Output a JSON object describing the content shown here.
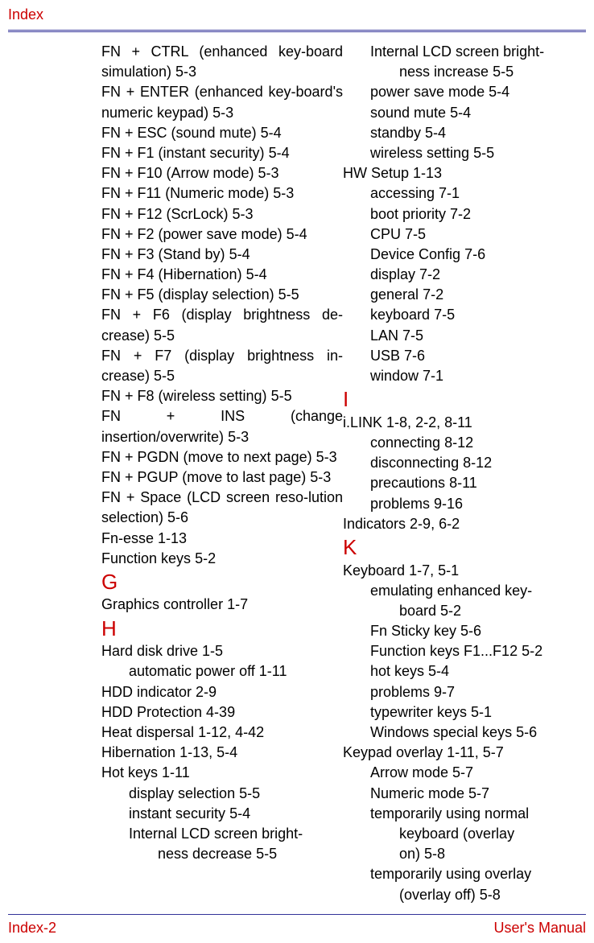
{
  "header": {
    "running_head": "Index"
  },
  "footer": {
    "page_number": "Index-2",
    "doc_title": "User's Manual"
  },
  "letters": {
    "G": "G",
    "H": "H",
    "I": "I",
    "K": "K"
  },
  "col1": {
    "e1": {
      "t": "FN + CTRL (enhanced key-board simulation) ",
      "p": "5-3"
    },
    "e2": {
      "t": "FN + ENTER (enhanced key-board's numeric keypad) ",
      "p": "5-3"
    },
    "e3": {
      "t": "FN + ESC (sound mute) ",
      "p": "5-4"
    },
    "e4": {
      "t": "FN + F1 (instant security) ",
      "p": "5-4"
    },
    "e5": {
      "t": "FN + F10 (Arrow mode) ",
      "p": "5-3"
    },
    "e6": {
      "t": "FN + F11 (Numeric mode) ",
      "p": "5-3"
    },
    "e7": {
      "t": "FN + F12 (ScrLock) ",
      "p": "5-3"
    },
    "e8": {
      "t": "FN + F2 (power save mode) ",
      "p": "5-4"
    },
    "e9": {
      "t": "FN + F3 (Stand by) ",
      "p": "5-4"
    },
    "e10": {
      "t": "FN + F4 (Hibernation) ",
      "p": "5-4"
    },
    "e11": {
      "t": "FN + F5 (display selection) ",
      "p": "5-5"
    },
    "e12": {
      "t": "FN + F6 (display brightness de-crease) ",
      "p": "5-5"
    },
    "e13": {
      "t": "FN + F7 (display brightness in-crease) ",
      "p": "5-5"
    },
    "e14": {
      "t": "FN + F8 (wireless setting) ",
      "p": "5-5"
    },
    "e15": {
      "t": "FN + INS (change insertion/overwrite) ",
      "p": "5-3"
    },
    "e16": {
      "t": "FN + PGDN (move to next page) ",
      "p": "5-3"
    },
    "e17": {
      "t": "FN + PGUP (move to last page) ",
      "p": "5-3"
    },
    "e18": {
      "t": "FN + Space (LCD screen reso-lution selection) ",
      "p": "5-6"
    },
    "e19": {
      "t": "Fn-esse ",
      "p": "1-13"
    },
    "e20": {
      "t": "Function keys ",
      "p": "5-2"
    },
    "g1": {
      "t": "Graphics controller ",
      "p": "1-7"
    },
    "h1": {
      "t": "Hard disk drive ",
      "p": "1-5"
    },
    "h1a": {
      "t": "automatic power off ",
      "p": "1-11"
    },
    "h2": {
      "t": "HDD indicator ",
      "p": "2-9"
    },
    "h3": {
      "t": "HDD Protection ",
      "p": "4-39"
    },
    "h4": {
      "t": "Heat dispersal ",
      "p1": "1-12",
      "sep": ", ",
      "p2": "4-42"
    },
    "h5": {
      "t": "Hibernation ",
      "p1": "1-13",
      "sep": ", ",
      "p2": "5-4"
    },
    "h6": {
      "t": "Hot keys ",
      "p": "1-11"
    },
    "h6a": {
      "t": "display selection ",
      "p": "5-5"
    },
    "h6b": {
      "t": "instant security ",
      "p": "5-4"
    },
    "h6c": {
      "t": "Internal LCD screen bright-"
    },
    "h6c2": {
      "t": "ness decrease ",
      "p": "5-5"
    }
  },
  "col2": {
    "a1": {
      "t": "Internal LCD screen bright-"
    },
    "a1b": {
      "t": "ness increase ",
      "p": "5-5"
    },
    "a2": {
      "t": "power save mode ",
      "p": "5-4"
    },
    "a3": {
      "t": "sound mute ",
      "p": "5-4"
    },
    "a4": {
      "t": "standby ",
      "p": "5-4"
    },
    "a5": {
      "t": "wireless setting ",
      "p": "5-5"
    },
    "hw": {
      "t": "HW Setup ",
      "p": "1-13"
    },
    "hw1": {
      "t": "accessing ",
      "p": "7-1"
    },
    "hw2": {
      "t": "boot priority ",
      "p": "7-2"
    },
    "hw3": {
      "t": "CPU ",
      "p": "7-5"
    },
    "hw4": {
      "t": "Device Config ",
      "p": "7-6"
    },
    "hw5": {
      "t": "display ",
      "p": "7-2"
    },
    "hw6": {
      "t": "general ",
      "p": "7-2"
    },
    "hw7": {
      "t": "keyboard ",
      "p": "7-5"
    },
    "hw8": {
      "t": "LAN ",
      "p": "7-5"
    },
    "hw9": {
      "t": "USB ",
      "p": "7-6"
    },
    "hw10": {
      "t": "window ",
      "p": "7-1"
    },
    "il": {
      "t": "i.LINK ",
      "p1": "1-8",
      "s1": ", ",
      "p2": "2-2",
      "s2": ", ",
      "p3": "8-11"
    },
    "il1": {
      "t": "connecting ",
      "p": "8-12"
    },
    "il2": {
      "t": "disconnecting ",
      "p": "8-12"
    },
    "il3": {
      "t": "precautions ",
      "p": "8-11"
    },
    "il4": {
      "t": "problems ",
      "p": "9-16"
    },
    "ind": {
      "t": "Indicators ",
      "p1": "2-9",
      "sep": ", ",
      "p2": "6-2"
    },
    "kb": {
      "t": "Keyboard ",
      "p1": "1-7",
      "sep": ", ",
      "p2": "5-1"
    },
    "kb1": {
      "t": "emulating enhanced key-"
    },
    "kb1b": {
      "t": "board ",
      "p": "5-2"
    },
    "kb2": {
      "t": "Fn Sticky key ",
      "p": "5-6"
    },
    "kb3": {
      "t": "Function keys F1...F12 ",
      "p": "5-2"
    },
    "kb4": {
      "t": "hot keys ",
      "p": "5-4"
    },
    "kb5": {
      "t": "problems ",
      "p": "9-7"
    },
    "kb6": {
      "t": "typewriter keys ",
      "p": "5-1"
    },
    "kb7": {
      "t": "Windows special keys ",
      "p": "5-6"
    },
    "ko": {
      "t": "Keypad overlay ",
      "p1": "1-11",
      "sep": ", ",
      "p2": "5-7"
    },
    "ko1": {
      "t": "Arrow mode ",
      "p": "5-7"
    },
    "ko2": {
      "t": "Numeric mode ",
      "p": "5-7"
    },
    "ko3": {
      "t": "temporarily using normal "
    },
    "ko3b": {
      "t": "keyboard (overlay "
    },
    "ko3c": {
      "t": "on) ",
      "p": "5-8"
    },
    "ko4": {
      "t": "temporarily using overlay "
    },
    "ko4b": {
      "t": "(overlay off) ",
      "p": "5-8"
    }
  }
}
